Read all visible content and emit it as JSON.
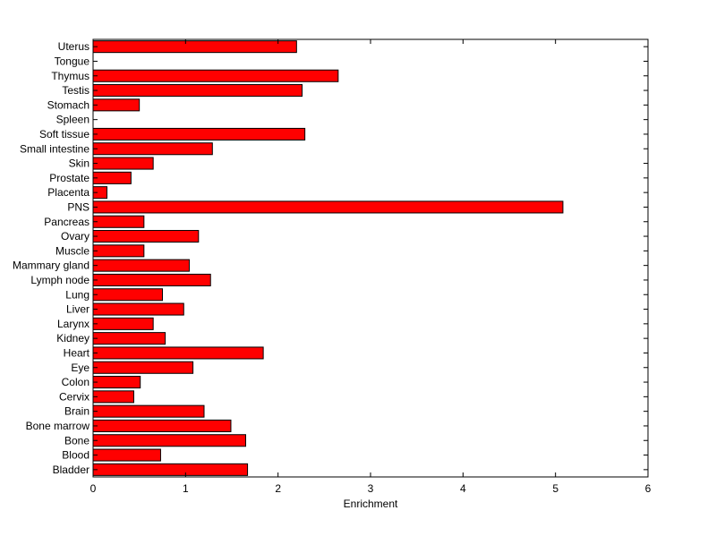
{
  "chart_data": {
    "type": "bar",
    "orientation": "horizontal",
    "title": "",
    "xlabel": "Enrichment",
    "ylabel": "",
    "xlim": [
      0,
      6
    ],
    "xticks": [
      0,
      1,
      2,
      3,
      4,
      5,
      6
    ],
    "grid": false,
    "bar_color": "#ff0000",
    "edge_color": "#000000",
    "categories": [
      "Uterus",
      "Tongue",
      "Thymus",
      "Testis",
      "Stomach",
      "Spleen",
      "Soft tissue",
      "Small intestine",
      "Skin",
      "Prostate",
      "Placenta",
      "PNS",
      "Pancreas",
      "Ovary",
      "Muscle",
      "Mammary gland",
      "Lymph node",
      "Lung",
      "Liver",
      "Larynx",
      "Kidney",
      "Heart",
      "Eye",
      "Colon",
      "Cervix",
      "Brain",
      "Bone marrow",
      "Bone",
      "Blood",
      "Bladder"
    ],
    "values": [
      2.2,
      0,
      2.65,
      2.26,
      0.5,
      0,
      2.29,
      1.29,
      0.65,
      0.41,
      0.15,
      5.08,
      0.55,
      1.14,
      0.55,
      1.04,
      1.27,
      0.75,
      0.98,
      0.65,
      0.78,
      1.84,
      1.08,
      0.51,
      0.44,
      1.2,
      1.49,
      1.65,
      0.73,
      1.67
    ]
  }
}
